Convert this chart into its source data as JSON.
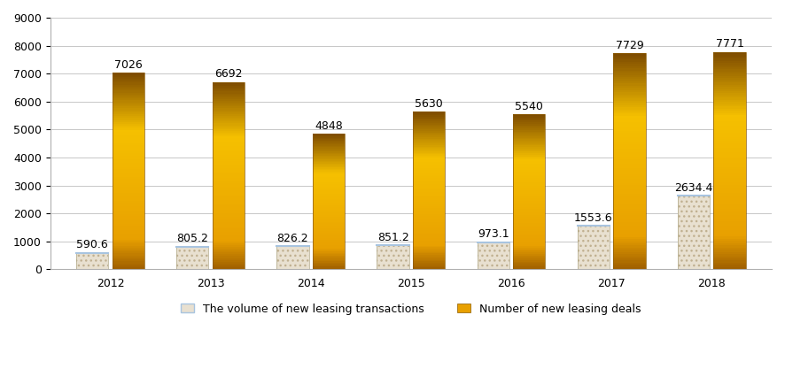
{
  "years": [
    "2012",
    "2013",
    "2014",
    "2015",
    "2016",
    "2017",
    "2018"
  ],
  "volume_values": [
    590.6,
    805.2,
    826.2,
    851.2,
    973.1,
    1553.6,
    2634.4
  ],
  "number_values": [
    7026,
    6692,
    4848,
    5630,
    5540,
    7729,
    7771
  ],
  "volume_color": "#e8e0d0",
  "volume_edge_color": "#a8c4e0",
  "number_color_light": "#f0a800",
  "number_color_dark": "#8B5A00",
  "number_color_mid": "#d48000",
  "ylim": [
    0,
    9000
  ],
  "yticks": [
    0,
    1000,
    2000,
    3000,
    4000,
    5000,
    6000,
    7000,
    8000,
    9000
  ],
  "legend_volume": "The volume of new leasing transactions",
  "legend_number": "Number of new leasing deals",
  "bar_width": 0.32,
  "figure_width": 8.86,
  "figure_height": 4.17,
  "dpi": 100,
  "label_fontsize": 9,
  "tick_fontsize": 9,
  "legend_fontsize": 9
}
